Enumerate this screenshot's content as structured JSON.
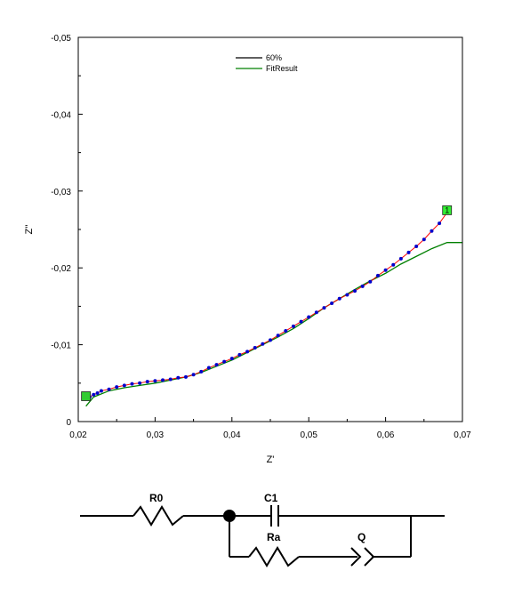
{
  "chart_data": {
    "type": "scatter",
    "xlabel": "Z'",
    "ylabel": "Z''",
    "xlim": [
      0.02,
      0.07
    ],
    "ylim": [
      0,
      -0.05
    ],
    "x_ticks": [
      "0,02",
      "0,03",
      "0,04",
      "0,05",
      "0,06",
      "0,07"
    ],
    "y_ticks": [
      "0",
      "-0,01",
      "-0,02",
      "-0,03",
      "-0,04",
      "-0,05"
    ],
    "grid": false,
    "legend_position": "top-center",
    "series": [
      {
        "name": "60%",
        "color": "#0000cc",
        "line_color": "#ff0000",
        "points": [
          [
            0.021,
            -0.003
          ],
          [
            0.0215,
            -0.0032
          ],
          [
            0.022,
            -0.0035
          ],
          [
            0.0225,
            -0.0037
          ],
          [
            0.023,
            -0.004
          ],
          [
            0.024,
            -0.0042
          ],
          [
            0.025,
            -0.0045
          ],
          [
            0.026,
            -0.0047
          ],
          [
            0.027,
            -0.0049
          ],
          [
            0.028,
            -0.005
          ],
          [
            0.029,
            -0.0052
          ],
          [
            0.03,
            -0.0053
          ],
          [
            0.031,
            -0.0054
          ],
          [
            0.032,
            -0.0055
          ],
          [
            0.033,
            -0.0057
          ],
          [
            0.034,
            -0.0058
          ],
          [
            0.035,
            -0.0061
          ],
          [
            0.036,
            -0.0065
          ],
          [
            0.037,
            -0.007
          ],
          [
            0.038,
            -0.0074
          ],
          [
            0.039,
            -0.0078
          ],
          [
            0.04,
            -0.0082
          ],
          [
            0.041,
            -0.0087
          ],
          [
            0.042,
            -0.0091
          ],
          [
            0.043,
            -0.0096
          ],
          [
            0.044,
            -0.0101
          ],
          [
            0.045,
            -0.0106
          ],
          [
            0.046,
            -0.0112
          ],
          [
            0.047,
            -0.0118
          ],
          [
            0.048,
            -0.0124
          ],
          [
            0.049,
            -0.013
          ],
          [
            0.05,
            -0.0136
          ],
          [
            0.051,
            -0.0142
          ],
          [
            0.052,
            -0.0148
          ],
          [
            0.053,
            -0.0154
          ],
          [
            0.054,
            -0.016
          ],
          [
            0.055,
            -0.0165
          ],
          [
            0.056,
            -0.017
          ],
          [
            0.057,
            -0.0176
          ],
          [
            0.058,
            -0.0182
          ],
          [
            0.059,
            -0.019
          ],
          [
            0.06,
            -0.0197
          ],
          [
            0.061,
            -0.0204
          ],
          [
            0.062,
            -0.0212
          ],
          [
            0.063,
            -0.022
          ],
          [
            0.064,
            -0.0228
          ],
          [
            0.065,
            -0.0237
          ],
          [
            0.066,
            -0.0248
          ],
          [
            0.067,
            -0.0258
          ],
          [
            0.068,
            -0.0272
          ]
        ]
      },
      {
        "name": "FitResult",
        "color": "#008000",
        "points": [
          [
            0.021,
            -0.002
          ],
          [
            0.022,
            -0.0032
          ],
          [
            0.024,
            -0.004
          ],
          [
            0.026,
            -0.0044
          ],
          [
            0.028,
            -0.0047
          ],
          [
            0.03,
            -0.005
          ],
          [
            0.032,
            -0.0054
          ],
          [
            0.034,
            -0.0058
          ],
          [
            0.036,
            -0.0064
          ],
          [
            0.038,
            -0.0072
          ],
          [
            0.04,
            -0.008
          ],
          [
            0.042,
            -0.009
          ],
          [
            0.044,
            -0.01
          ],
          [
            0.046,
            -0.011
          ],
          [
            0.048,
            -0.0121
          ],
          [
            0.05,
            -0.0134
          ],
          [
            0.052,
            -0.0148
          ],
          [
            0.054,
            -0.016
          ],
          [
            0.056,
            -0.0172
          ],
          [
            0.058,
            -0.0183
          ],
          [
            0.06,
            -0.0193
          ],
          [
            0.062,
            -0.0205
          ],
          [
            0.064,
            -0.0215
          ],
          [
            0.066,
            -0.0225
          ],
          [
            0.068,
            -0.0233
          ],
          [
            0.07,
            -0.0233
          ]
        ]
      }
    ],
    "markers": [
      {
        "label": "",
        "x": 0.021,
        "y": -0.0033,
        "color": "#33cc33"
      },
      {
        "label": "1",
        "x": 0.068,
        "y": -0.0275,
        "color": "#33ee33"
      }
    ]
  },
  "circuit": {
    "labels": {
      "r0": "R0",
      "c1": "C1",
      "ra": "Ra",
      "q": "Q"
    }
  }
}
